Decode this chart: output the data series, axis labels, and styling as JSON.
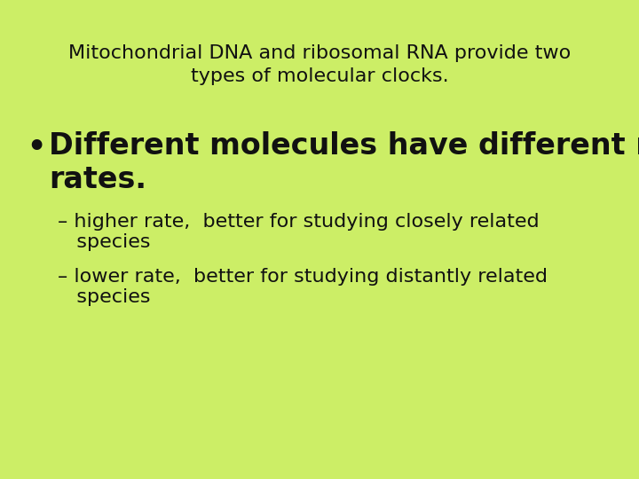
{
  "background_color": "#ccee66",
  "title_line1": "Mitochondrial DNA and ribosomal RNA provide two",
  "title_line2": "types of molecular clocks.",
  "title_fontsize": 16,
  "title_color": "#111111",
  "bullet_char": "•",
  "bullet_text_line1": "Different molecules have different mutation",
  "bullet_text_line2": "rates.",
  "bullet_fontsize": 24,
  "bullet_color": "#111111",
  "sub_bullet1_line1": "– higher rate,  better for studying closely related",
  "sub_bullet1_line2": "   species",
  "sub_bullet2_line1": "– lower rate,  better for studying distantly related",
  "sub_bullet2_line2": "   species",
  "sub_bullet_fontsize": 16,
  "sub_bullet_color": "#111111",
  "font_family": "DejaVu Sans"
}
